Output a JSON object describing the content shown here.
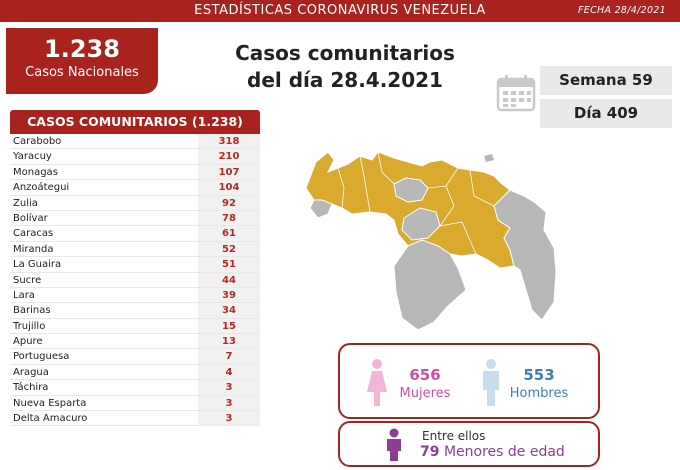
{
  "header": {
    "title": "ESTADÍSTICAS CORONAVIRUS VENEZUELA",
    "date": "FECHA 28/4/2021"
  },
  "national": {
    "count": "1.238",
    "label": "Casos Nacionales"
  },
  "headline": {
    "line1": "Casos comunitarios",
    "line2": "del día 28.4.2021"
  },
  "counters": {
    "week": "Semana 59",
    "day": "Día 409"
  },
  "cases_table": {
    "title": "CASOS COMUNITARIOS (1.238)",
    "rows": [
      {
        "state": "Carabobo",
        "value": "318"
      },
      {
        "state": "Yaracuy",
        "value": "210"
      },
      {
        "state": "Monagas",
        "value": "107"
      },
      {
        "state": "Anzoátegui",
        "value": "104"
      },
      {
        "state": "Zulia",
        "value": "92"
      },
      {
        "state": "Bolívar",
        "value": "78"
      },
      {
        "state": "Caracas",
        "value": "61"
      },
      {
        "state": "Miranda",
        "value": "52"
      },
      {
        "state": "La Guaira",
        "value": "51"
      },
      {
        "state": "Sucre",
        "value": "44"
      },
      {
        "state": "Lara",
        "value": "39"
      },
      {
        "state": "Barinas",
        "value": "34"
      },
      {
        "state": "Trujillo",
        "value": "15"
      },
      {
        "state": "Apure",
        "value": "13"
      },
      {
        "state": "Portuguesa",
        "value": "7"
      },
      {
        "state": "Aragua",
        "value": "4"
      },
      {
        "state": "Táchira",
        "value": "3"
      },
      {
        "state": "Nueva Esparta",
        "value": "3"
      },
      {
        "state": "Delta Amacuro",
        "value": "3"
      }
    ]
  },
  "gender": {
    "women_count": "656",
    "women_label": "Mujeres",
    "men_count": "553",
    "men_label": "Hombres"
  },
  "minors": {
    "intro": "Entre ellos",
    "count": "79",
    "label": "Menores de edad"
  },
  "colors": {
    "brand_red": "#a8221e",
    "map_highlight": "#d9aa2e",
    "map_base": "#b7b7b7",
    "women": "#cf4fa1",
    "men": "#3b7fb8",
    "minors": "#8d3d96"
  },
  "icons": [
    "calendar-icon",
    "woman-icon",
    "man-icon",
    "child-icon",
    "venezuela-map"
  ]
}
